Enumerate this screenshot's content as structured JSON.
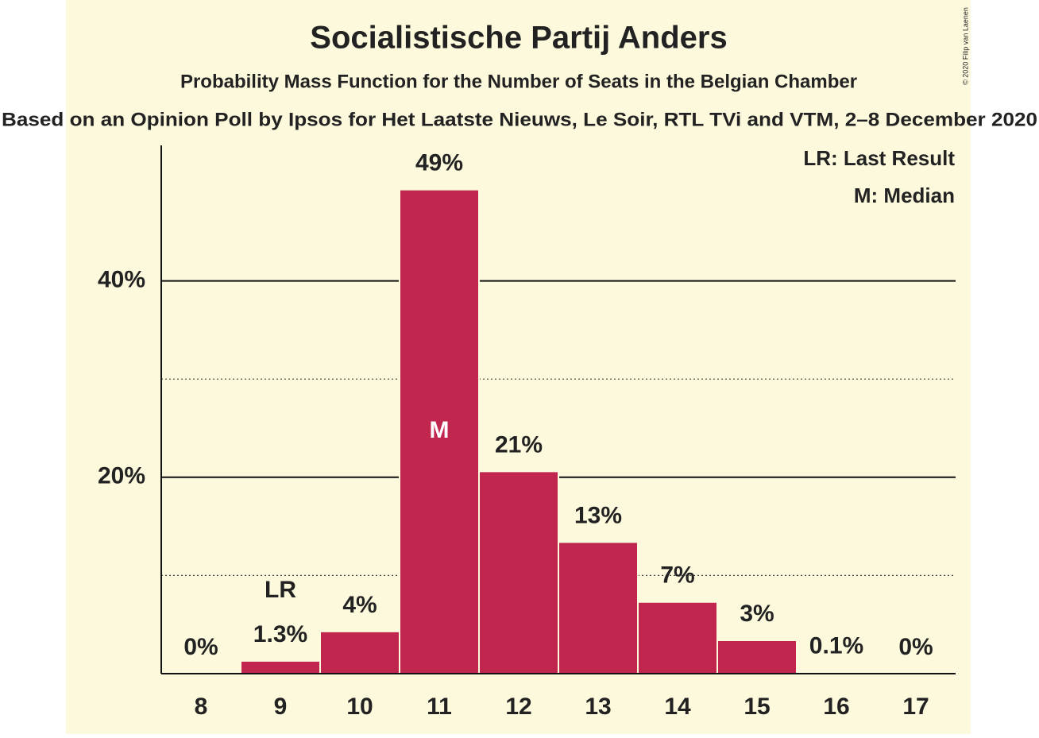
{
  "chart_data": {
    "type": "bar",
    "title": "Socialistische Partij Anders",
    "subtitle": "Probability Mass Function for the Number of Seats in the Belgian Chamber",
    "source": "Based on an Opinion Poll by Ipsos for Het Laatste Nieuws, Le Soir, RTL TVi and VTM, 2–8 December 2020",
    "copyright": "© 2020 Filip van Laenen",
    "categories": [
      "8",
      "9",
      "10",
      "11",
      "12",
      "13",
      "14",
      "15",
      "16",
      "17"
    ],
    "values": [
      0,
      1.3,
      4.3,
      49.3,
      20.6,
      13.4,
      7.3,
      3.4,
      0.1,
      0
    ],
    "value_labels": [
      "0%",
      "1.3%",
      "4%",
      "49%",
      "21%",
      "13%",
      "7%",
      "3%",
      "0.1%",
      "0%"
    ],
    "color": "#c1264f",
    "ylim": [
      0,
      53.8
    ],
    "yticks": [
      {
        "value": 20,
        "label": "20%"
      },
      {
        "value": 40,
        "label": "40%"
      }
    ],
    "minor_yticks": [
      10,
      30
    ],
    "grid": true,
    "markers": [
      {
        "category": "9",
        "label": "LR",
        "position": "above"
      },
      {
        "category": "11",
        "label": "M",
        "position": "inside"
      }
    ],
    "legend": [
      "LR: Last Result",
      "M: Median"
    ],
    "legend_position": "top-right"
  }
}
